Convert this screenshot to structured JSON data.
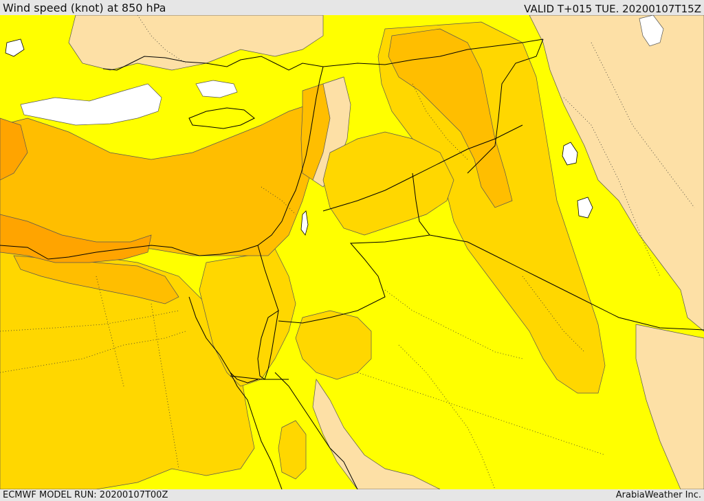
{
  "header": {
    "title": "Wind speed (knot) at 850 hPa",
    "valid_time": "VALID T+015 TUE. 20200107T15Z"
  },
  "footer": {
    "model_run": "ECMWF MODEL RUN: 20200107T00Z",
    "provider": "ArabiaWeather Inc."
  },
  "map": {
    "variable": "Wind speed",
    "level": "850 hPa",
    "units": "knot",
    "fill_colors": {
      "lightest": "#ffffff",
      "pale": "#fde0a6",
      "yellow": "#ffff00",
      "gold": "#ffd700",
      "amber": "#ffbe00",
      "orange": "#ffa400"
    },
    "line_colors": {
      "coastline": "#000000",
      "border": "#000000",
      "contour": "#555555"
    }
  }
}
